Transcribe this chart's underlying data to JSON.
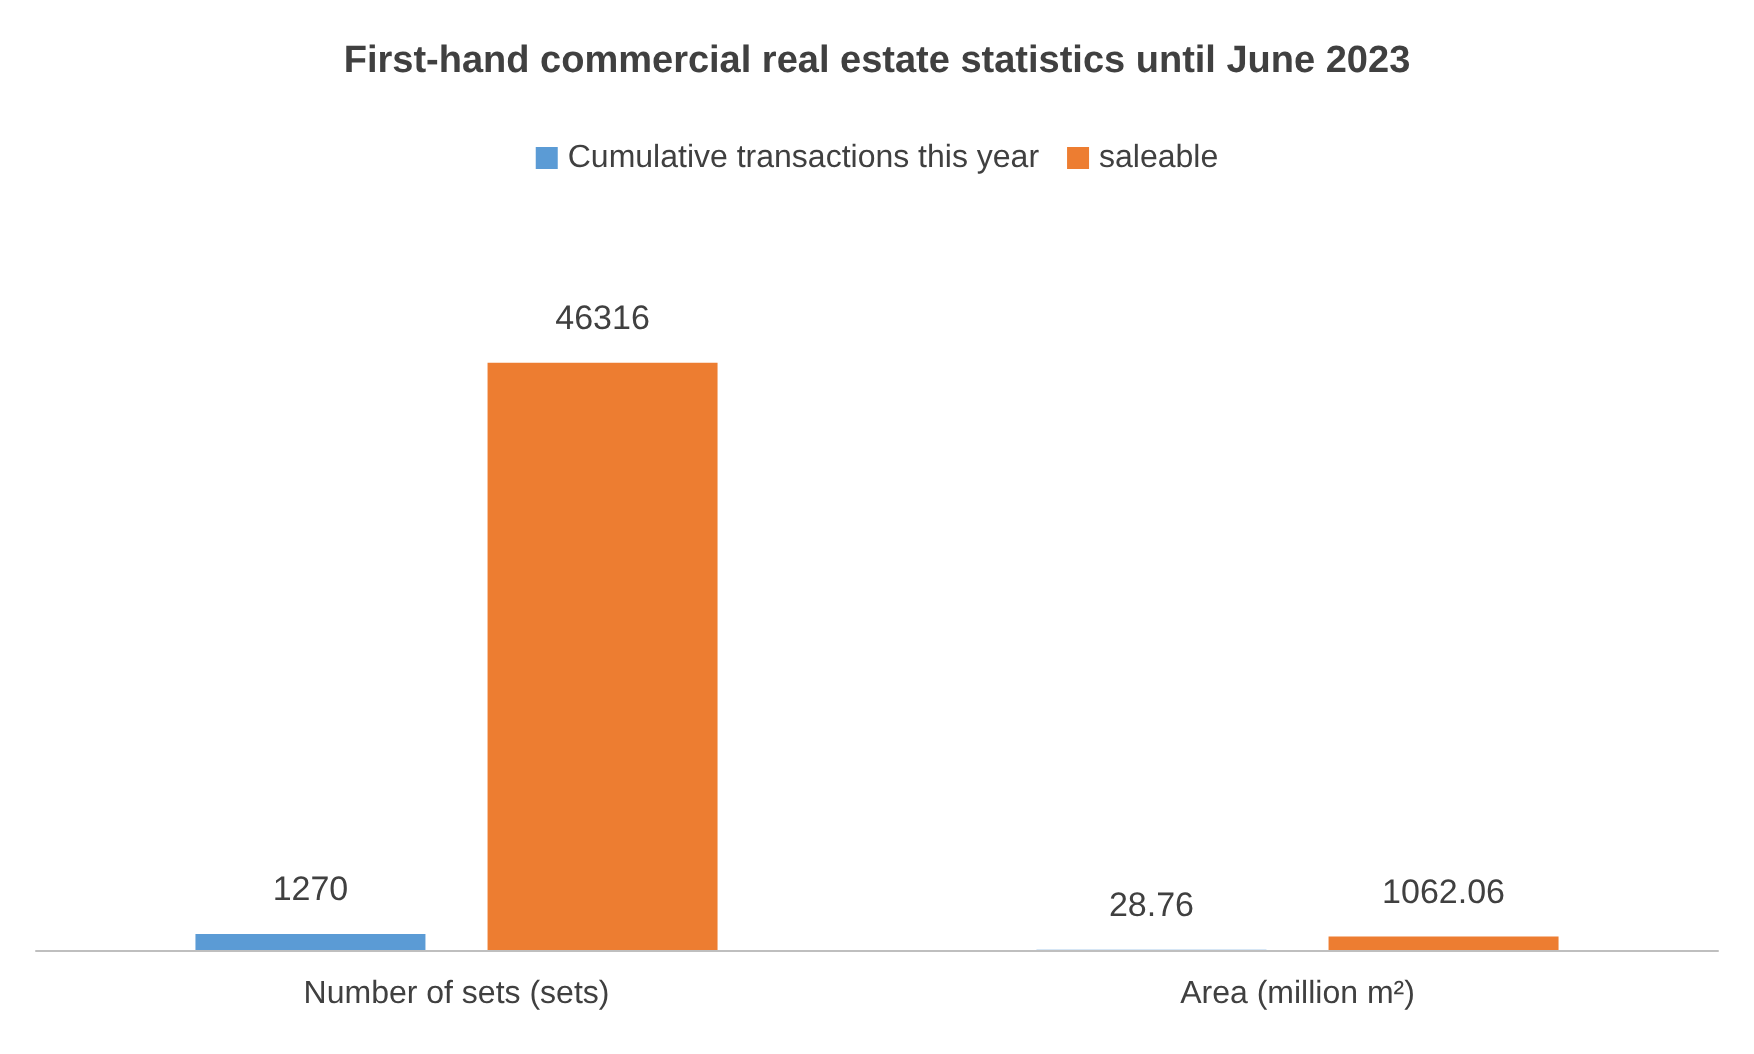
{
  "chart_data": {
    "type": "bar",
    "title": "First-hand commercial real estate statistics until June 2023",
    "categories": [
      "Number of sets (sets)",
      "Area (million m²)"
    ],
    "series": [
      {
        "name": "Cumulative transactions this year",
        "color": "#5b9bd5",
        "values": [
          1270,
          28.76
        ]
      },
      {
        "name": "saleable",
        "color": "#ed7d31",
        "values": [
          46316,
          1062.06
        ]
      }
    ],
    "data_labels": true,
    "legend": "top",
    "grid": false
  }
}
